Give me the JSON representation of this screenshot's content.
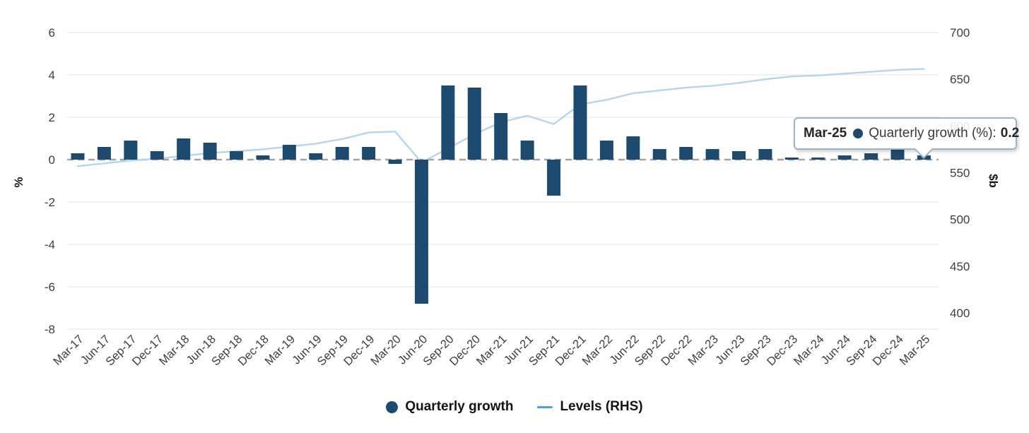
{
  "chart_data": {
    "type": "combo",
    "categories": [
      "Mar-17",
      "Jun-17",
      "Sep-17",
      "Dec-17",
      "Mar-18",
      "Jun-18",
      "Sep-18",
      "Dec-18",
      "Mar-19",
      "Jun-19",
      "Sep-19",
      "Dec-19",
      "Mar-20",
      "Jun-20",
      "Sep-20",
      "Dec-20",
      "Mar-21",
      "Jun-21",
      "Sep-21",
      "Dec-21",
      "Mar-22",
      "Jun-22",
      "Sep-22",
      "Dec-22",
      "Mar-23",
      "Jun-23",
      "Sep-23",
      "Dec-23",
      "Mar-24",
      "Jun-24",
      "Sep-24",
      "Dec-24",
      "Mar-25"
    ],
    "series": [
      {
        "name": "Quarterly growth",
        "type": "bar",
        "axis": "left",
        "values": [
          0.3,
          0.6,
          0.9,
          0.4,
          1.0,
          0.8,
          0.4,
          0.2,
          0.7,
          0.3,
          0.6,
          0.6,
          -0.2,
          -6.8,
          3.5,
          3.4,
          2.2,
          0.9,
          -1.7,
          3.5,
          0.9,
          1.1,
          0.5,
          0.6,
          0.5,
          0.4,
          0.5,
          0.1,
          0.1,
          0.2,
          0.3,
          0.5,
          0.2
        ]
      },
      {
        "name": "Levels (RHS)",
        "type": "line",
        "axis": "right",
        "values": [
          557,
          560,
          563,
          565,
          568,
          571,
          573,
          575,
          578,
          581,
          586,
          593,
          594,
          561,
          576,
          591,
          604,
          611,
          602,
          623,
          628,
          635,
          638,
          641,
          643,
          646,
          650,
          653,
          654,
          656,
          658,
          660,
          661
        ]
      }
    ],
    "left_axis": {
      "label": "%",
      "ticks": [
        6,
        4,
        2,
        0,
        -2,
        -4,
        -6,
        -8
      ],
      "min": -8,
      "max": 6
    },
    "right_axis": {
      "label": "$b",
      "ticks": [
        700,
        650,
        600,
        550,
        500,
        450,
        400
      ],
      "min": 400,
      "max": 700
    },
    "grid": true,
    "legend_position": "bottom"
  },
  "legend": {
    "bar_label": "Quarterly growth",
    "line_label": "Levels (RHS)"
  },
  "tooltip": {
    "date": "Mar-25",
    "series_label": "Quarterly growth (%):",
    "value": "0.2"
  },
  "colors": {
    "bar": "#1d4b70",
    "line": "#b7d5e8",
    "legend_line_marker": "#4d9fd6",
    "gridline": "#e7ebee",
    "zero_line": "#a3a3a3",
    "axis_text": "#3d3d3d",
    "tooltip_border": "#9db3c6"
  }
}
